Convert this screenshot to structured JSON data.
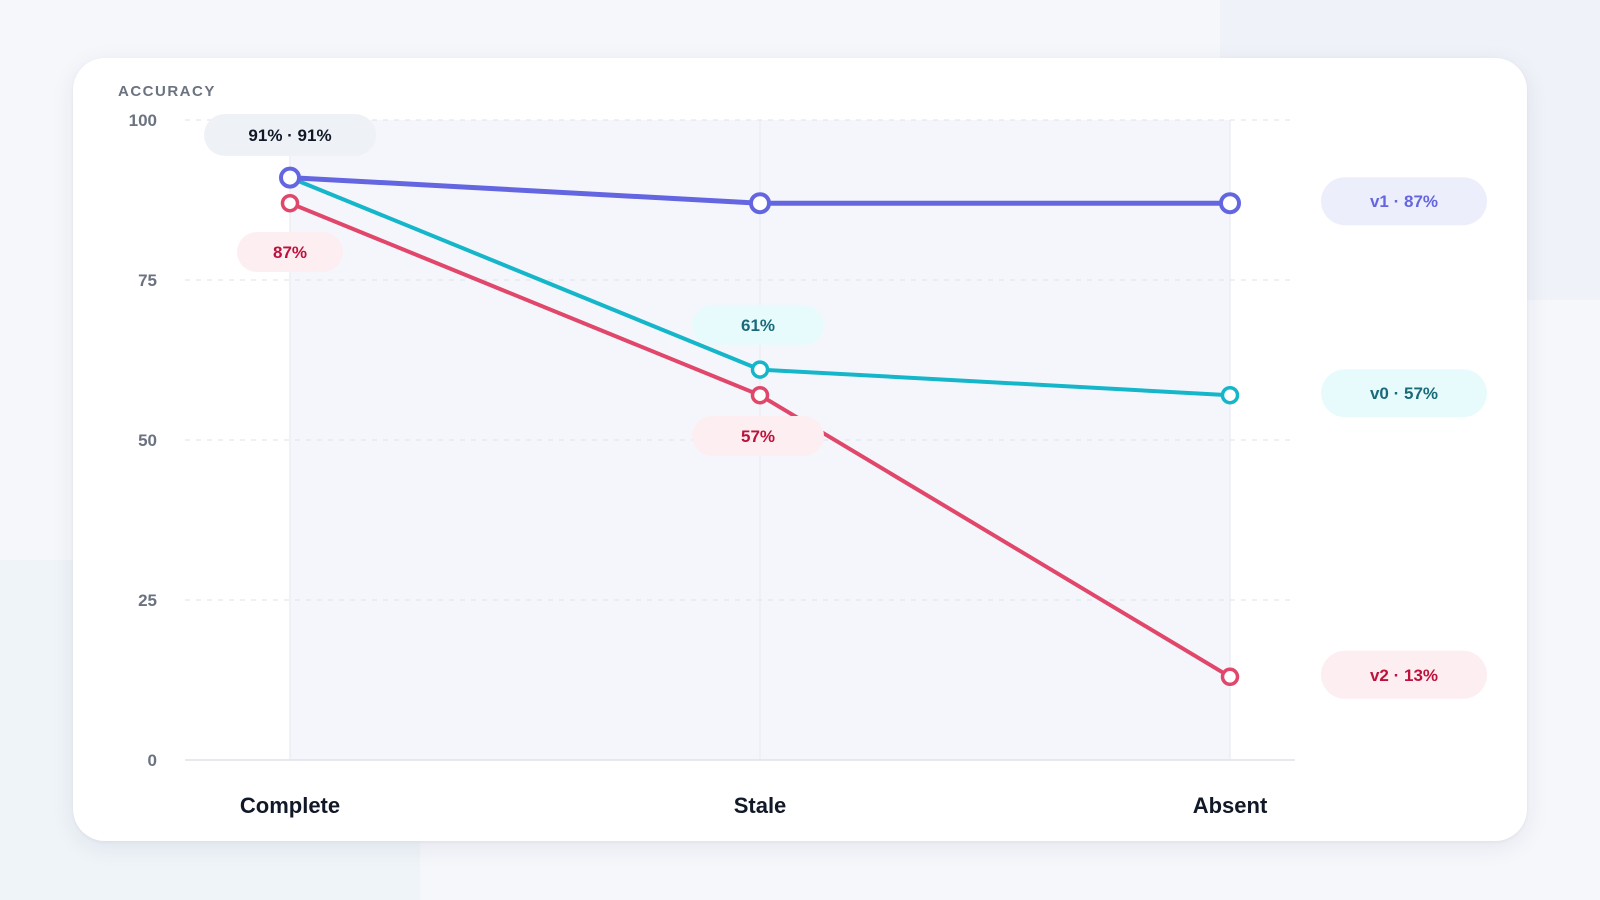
{
  "chart_data": {
    "type": "line",
    "ylabel": "ACCURACY",
    "ylim": [
      0,
      100
    ],
    "yticks": [
      "0",
      "25",
      "50",
      "75",
      "100"
    ],
    "categories": [
      "Complete",
      "Stale",
      "Absent"
    ],
    "grid": true,
    "series": [
      {
        "name": "v1",
        "values": [
          91,
          87,
          87
        ],
        "color": "#6366e0",
        "end_label": "v1 · 87%",
        "end_bg": "#eceefb",
        "end_fg": "#6366e0"
      },
      {
        "name": "v0",
        "values": [
          91,
          61,
          57
        ],
        "color": "#15b6c9",
        "end_label": "v0 · 57%",
        "end_bg": "#e8fbfc",
        "end_fg": "#1a6b7a"
      },
      {
        "name": "v2",
        "values": [
          87,
          57,
          13
        ],
        "color": "#e0476a",
        "end_label": "v2 · 13%",
        "end_bg": "#fdeef1",
        "end_fg": "#be123c"
      }
    ],
    "annotations": [
      {
        "text": "91% · 91%",
        "bg": "#eef1f6",
        "fg": "#111827"
      },
      {
        "text": "87%",
        "bg": "#fdeef1",
        "fg": "#be123c"
      },
      {
        "text": "61%",
        "bg": "#e8fbfc",
        "fg": "#1a6b7a"
      },
      {
        "text": "57%",
        "bg": "#fdeef1",
        "fg": "#be123c"
      }
    ]
  }
}
